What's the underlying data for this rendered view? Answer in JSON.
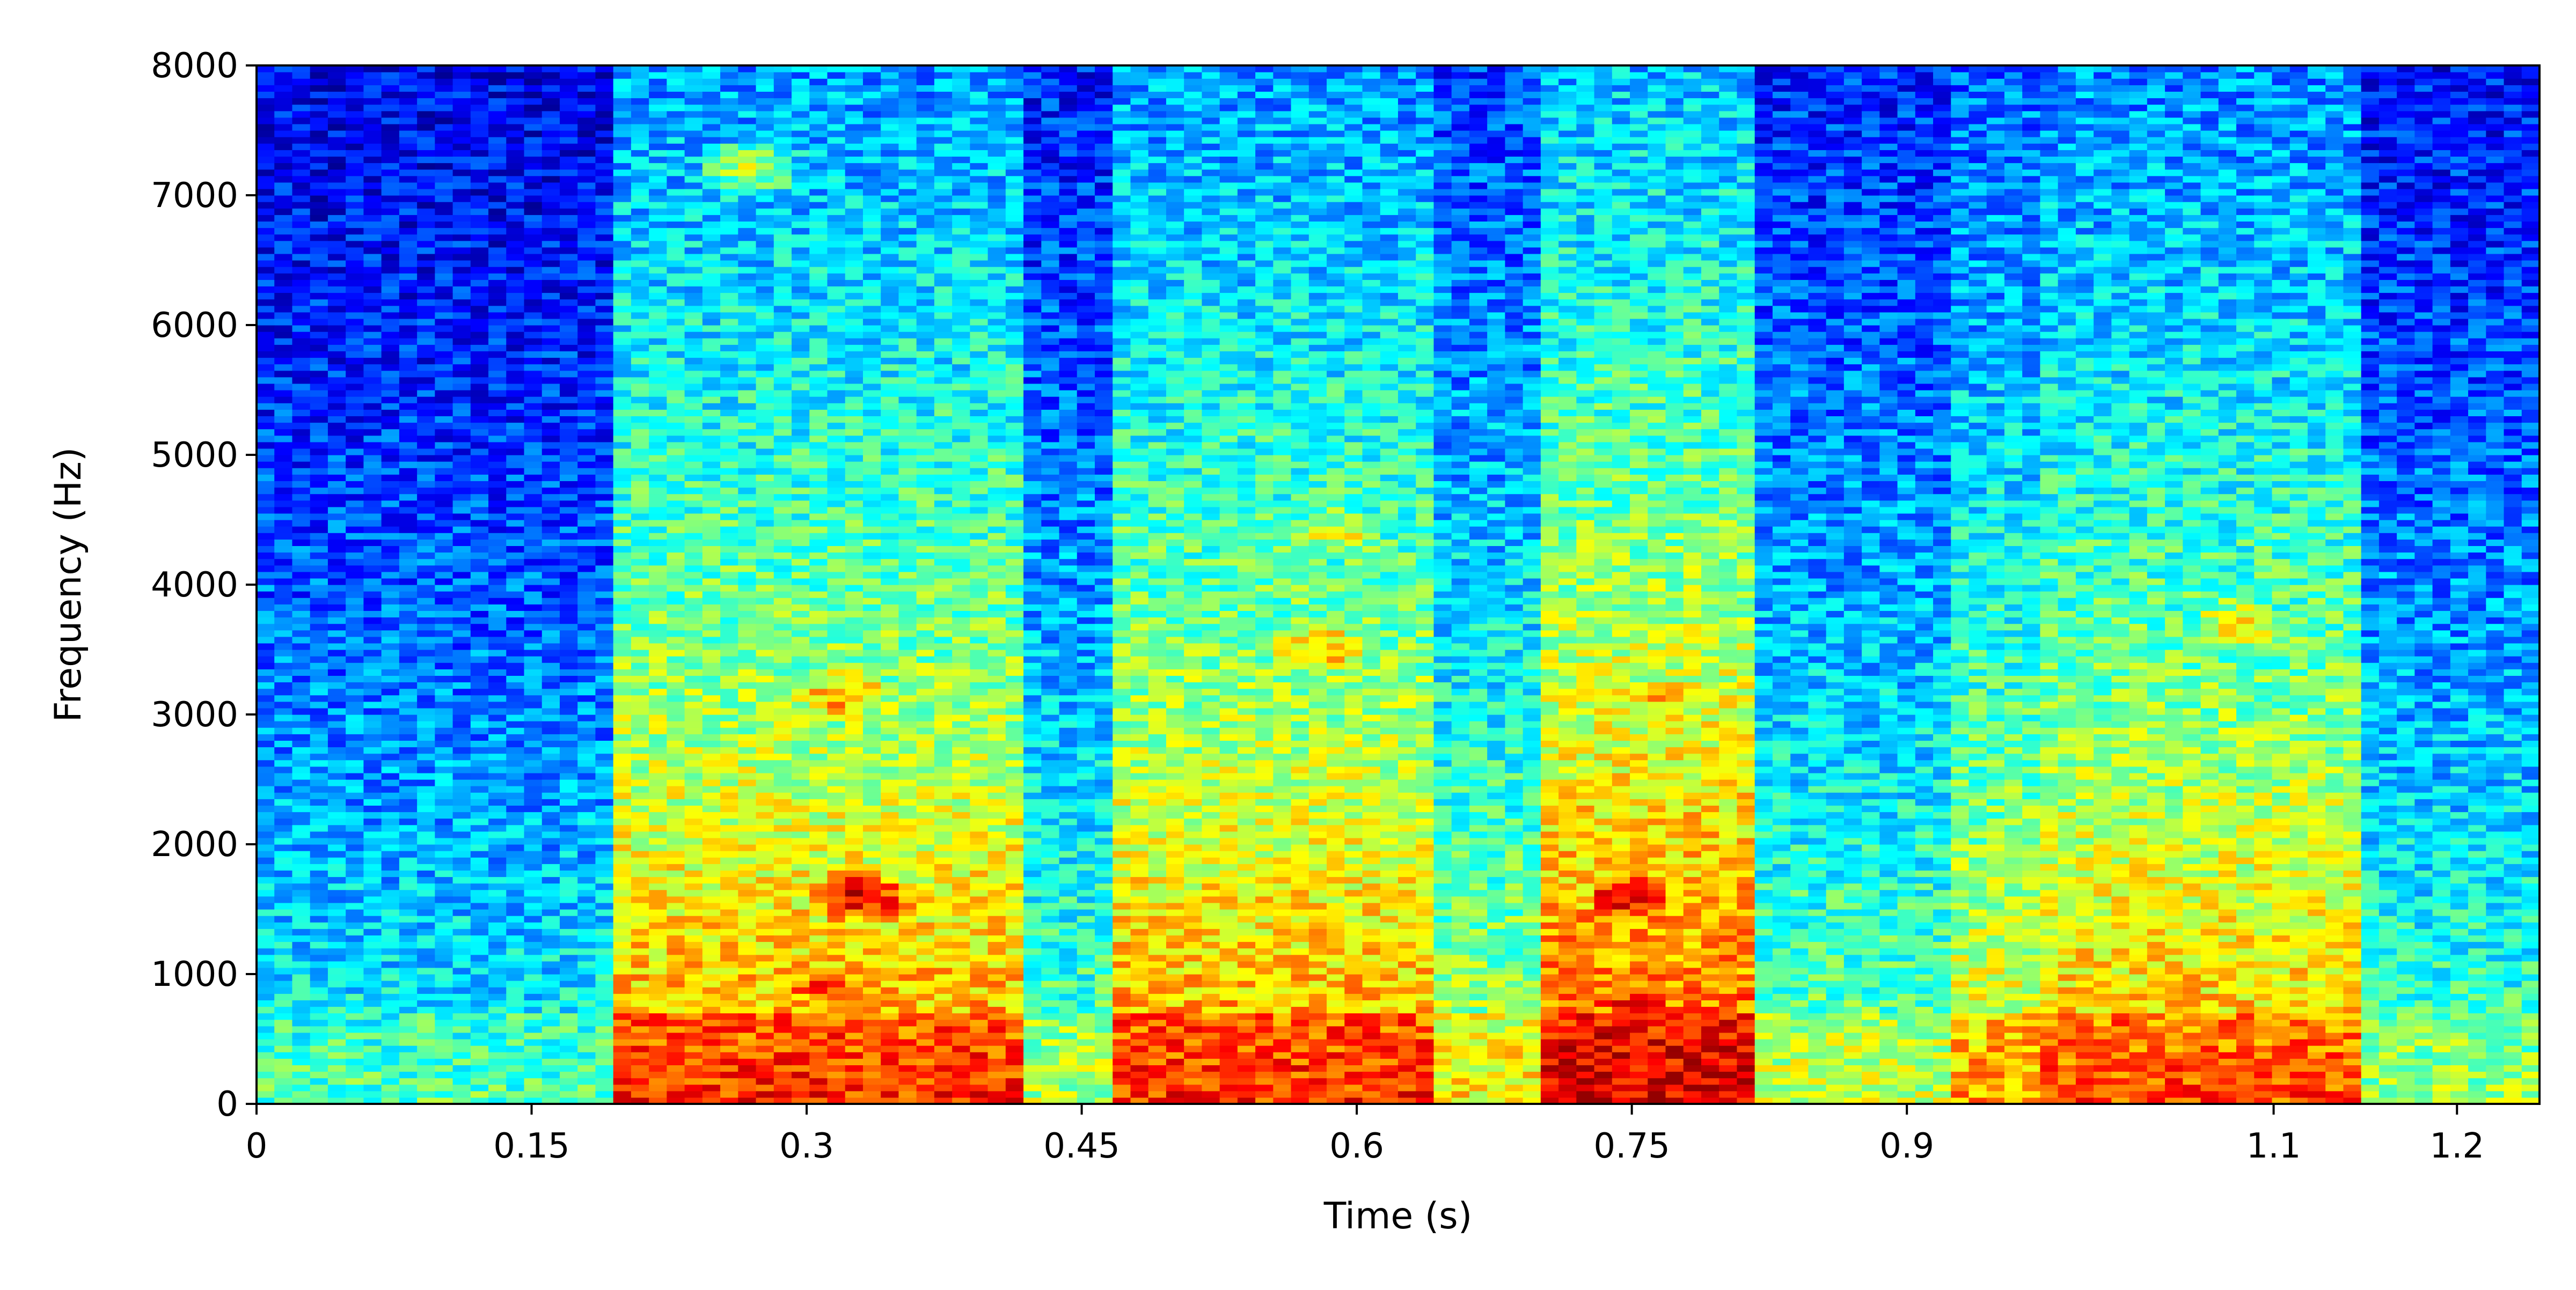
{
  "chart_data": {
    "type": "heatmap",
    "xlabel": "Time (s)",
    "ylabel": "Frequency (Hz)",
    "xlim": [
      0,
      1.245
    ],
    "ylim": [
      0,
      8000
    ],
    "xticks": [
      0,
      0.15,
      0.3,
      0.45,
      0.6,
      0.75,
      0.9,
      1.1,
      1.2
    ],
    "xtick_labels": [
      "0",
      "0.15",
      "0.3",
      "0.45",
      "0.6",
      "0.75",
      "0.9",
      "1.1",
      "1.2"
    ],
    "yticks": [
      0,
      1000,
      2000,
      3000,
      4000,
      5000,
      6000,
      7000,
      8000
    ],
    "ytick_labels": [
      "0",
      "1000",
      "2000",
      "3000",
      "4000",
      "5000",
      "6000",
      "7000",
      "8000"
    ],
    "colormap": "jet",
    "colors": {
      "low": "#00007f",
      "mid": "#00ffff",
      "high": "#ff0000"
    },
    "grid": false,
    "legend": "none",
    "time_frames": 128,
    "frequency_bins": 160,
    "energy_profile": {
      "description_units": "relative energy 0-1 at 0 Hz baseline per time segment",
      "segments": [
        {
          "t0": 0.0,
          "t1": 0.19,
          "level": 0.22
        },
        {
          "t0": 0.19,
          "t1": 0.42,
          "level": 0.55
        },
        {
          "t0": 0.42,
          "t1": 0.47,
          "level": 0.3
        },
        {
          "t0": 0.47,
          "t1": 0.64,
          "level": 0.55
        },
        {
          "t0": 0.64,
          "t1": 0.7,
          "level": 0.38
        },
        {
          "t0": 0.7,
          "t1": 0.82,
          "level": 0.62
        },
        {
          "t0": 0.82,
          "t1": 0.92,
          "level": 0.32
        },
        {
          "t0": 0.92,
          "t1": 0.97,
          "level": 0.45
        },
        {
          "t0": 0.97,
          "t1": 1.15,
          "level": 0.52
        },
        {
          "t0": 1.15,
          "t1": 1.245,
          "level": 0.28
        }
      ],
      "hotspots": [
        {
          "t": 0.33,
          "f": 1600,
          "value": 0.92
        },
        {
          "t": 0.32,
          "f": 3150,
          "value": 0.72
        },
        {
          "t": 0.31,
          "f": 900,
          "value": 0.8
        },
        {
          "t": 0.33,
          "f": 250,
          "value": 0.78
        },
        {
          "t": 0.58,
          "f": 3500,
          "value": 0.72
        },
        {
          "t": 0.59,
          "f": 4400,
          "value": 0.6
        },
        {
          "t": 0.75,
          "f": 1600,
          "value": 0.9
        },
        {
          "t": 0.75,
          "f": 800,
          "value": 0.85
        },
        {
          "t": 0.74,
          "f": 250,
          "value": 0.8
        },
        {
          "t": 0.77,
          "f": 3100,
          "value": 0.68
        },
        {
          "t": 1.08,
          "f": 3700,
          "value": 0.62
        },
        {
          "t": 1.05,
          "f": 400,
          "value": 0.66
        },
        {
          "t": 0.27,
          "f": 7200,
          "value": 0.55
        }
      ]
    }
  }
}
